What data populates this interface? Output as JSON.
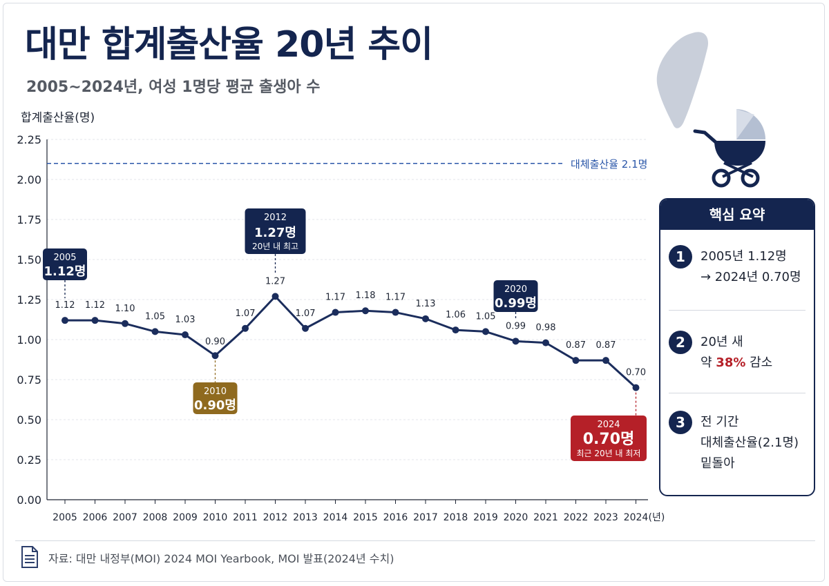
{
  "header": {
    "title": "대만 합계출산율 20년 추이",
    "subtitle": "2005~2024년, 여성 1명당 평균 출생아 수"
  },
  "chart_data": {
    "type": "line",
    "ylabel": "합계출산율(명)",
    "x": [
      "2005",
      "2006",
      "2007",
      "2008",
      "2009",
      "2010",
      "2011",
      "2012",
      "2013",
      "2014",
      "2015",
      "2016",
      "2017",
      "2018",
      "2019",
      "2020",
      "2021",
      "2022",
      "2023",
      "2024"
    ],
    "x_unit_suffix": "(년)",
    "values": [
      1.12,
      1.12,
      1.1,
      1.05,
      1.03,
      0.9,
      1.07,
      1.27,
      1.07,
      1.17,
      1.18,
      1.17,
      1.13,
      1.06,
      1.05,
      0.99,
      0.98,
      0.87,
      0.87,
      0.7
    ],
    "data_labels": [
      "1.12",
      "1.12",
      "1.10",
      "1.05",
      "1.03",
      "0.90",
      "1.07",
      "1.27",
      "1.07",
      "1.17",
      "1.18",
      "1.17",
      "1.13",
      "1.06",
      "1.05",
      "0.99",
      "0.98",
      "0.87",
      "0.87",
      "0.70"
    ],
    "ylim": [
      0,
      2.25
    ],
    "yticks": [
      "0.00",
      "0.25",
      "0.50",
      "0.75",
      "1.00",
      "1.25",
      "1.50",
      "1.75",
      "2.00",
      "2.25"
    ],
    "grid": true,
    "reference_line": {
      "value": 2.1,
      "label": "대체출산율 2.1명"
    },
    "callouts": [
      {
        "index": 0,
        "year": "2005",
        "value": "1.12명",
        "note": "",
        "style": "navy",
        "placement": "above"
      },
      {
        "index": 7,
        "year": "2012",
        "value": "1.27명",
        "note": "20년 내 최고",
        "style": "navy",
        "placement": "above"
      },
      {
        "index": 5,
        "year": "2010",
        "value": "0.90명",
        "note": "",
        "style": "gold",
        "placement": "below"
      },
      {
        "index": 15,
        "year": "2020",
        "value": "0.99명",
        "note": "",
        "style": "navy",
        "placement": "above"
      },
      {
        "index": 19,
        "year": "2024",
        "value": "0.70명",
        "note": "최근 20년 내 최저",
        "style": "red",
        "placement": "below"
      }
    ],
    "colors": {
      "line": "#1b2d5c",
      "navy": "#14254f",
      "gold": "#8f6a1f",
      "red": "#b52028",
      "reference": "#2a56a8"
    }
  },
  "summary": {
    "heading": "핵심 요약",
    "items": [
      {
        "num": "1",
        "line1": "2005년 1.12명",
        "line2": "→ 2024년 0.70명"
      },
      {
        "num": "2",
        "line1": "20년 새",
        "line2_prefix": "약 ",
        "line2_highlight": "38%",
        "line2_suffix": " 감소"
      },
      {
        "num": "3",
        "line1": "전 기간",
        "line2": "대체출산율(2.1명)",
        "line3": "밑돌아"
      }
    ]
  },
  "footer": {
    "source": "자료: 대만 내정부(MOI) 2024 MOI Yearbook, MOI 발표(2024년 수치)"
  },
  "icons": [
    "taiwan-map-icon",
    "baby-stroller-icon",
    "document-icon"
  ]
}
